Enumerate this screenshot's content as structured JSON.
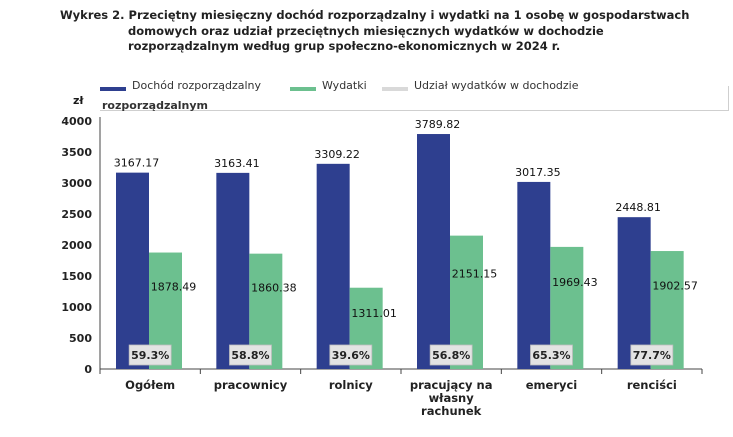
{
  "title": {
    "line1": "Wykres 2. Przeciętny miesięczny dochód rozporządzalny i wydatki na 1 osobę w gospodarstwach",
    "line2": "domowych oraz udział przeciętnych miesięcznych wydatków w dochodzie",
    "line3": "rozporządzalnym według grup społeczno-ekonomicznych w 2024 r."
  },
  "legend": {
    "unit": "zł",
    "items": [
      {
        "label": "Dochód rozporządzalny",
        "color": "#2e3f8f"
      },
      {
        "label": "Wydatki",
        "color": "#6cc08f"
      },
      {
        "label": "Udział wydatków w dochodzie",
        "color": "#d9d9d9"
      }
    ],
    "continuation": "rozporządzalnym"
  },
  "chart_data": {
    "type": "bar",
    "ylabel": "zł",
    "ylim": [
      0,
      4000
    ],
    "yticks": [
      "0",
      "500",
      "1000",
      "1500",
      "2000",
      "2500",
      "3000",
      "3500",
      "4000"
    ],
    "categories": [
      [
        "Ogółem"
      ],
      [
        "pracownicy"
      ],
      [
        "rolnicy"
      ],
      [
        "pracujący na",
        "własny",
        "rachunek"
      ],
      [
        "emeryci"
      ],
      [
        "renciści"
      ]
    ],
    "series": [
      {
        "name": "Dochód rozporządzalny",
        "color": "#2e3f8f",
        "values": [
          3167.17,
          3163.41,
          3309.22,
          3789.82,
          3017.35,
          2448.81
        ],
        "labels": [
          "3167.17",
          "3163.41",
          "3309.22",
          "3789.82",
          "3017.35",
          "2448.81"
        ]
      },
      {
        "name": "Wydatki",
        "color": "#6cc08f",
        "values": [
          1878.49,
          1860.38,
          1311.01,
          2151.15,
          1969.43,
          1902.57
        ],
        "labels": [
          "1878.49",
          "1860.38",
          "1311.01",
          "2151.15",
          "1969.43",
          "1902.57"
        ]
      }
    ],
    "shares": [
      "59.3%",
      "58.8%",
      "39.6%",
      "56.8%",
      "65.3%",
      "77.7%"
    ]
  }
}
